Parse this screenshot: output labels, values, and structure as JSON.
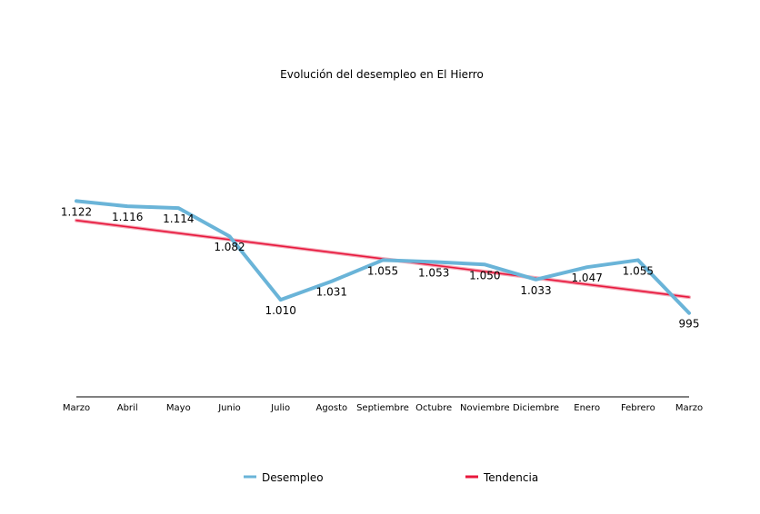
{
  "chart_data": {
    "type": "line",
    "title": "Evolución del desempleo en El Hierro",
    "categories": [
      "Marzo",
      "Abril",
      "Mayo",
      "Junio",
      "Julio",
      "Agosto",
      "Septiembre",
      "Octubre",
      "Noviembre",
      "Diciembre",
      "Enero",
      "Febrero",
      "Marzo"
    ],
    "series": [
      {
        "name": "Desempleo",
        "color": "#6ab4d8",
        "values": [
          1122,
          1116,
          1114,
          1082,
          1010,
          1031,
          1055,
          1053,
          1050,
          1033,
          1047,
          1055,
          995
        ],
        "labels": [
          "1.122",
          "1.116",
          "1.114",
          "1.082",
          "1.010",
          "1.031",
          "1.055",
          "1.053",
          "1.050",
          "1.033",
          "1.047",
          "1.055",
          "995"
        ]
      },
      {
        "name": "Tendencia",
        "color": "#e8173c",
        "type": "linear-trend",
        "start": 1100,
        "end": 1013
      }
    ],
    "ylim": [
      900,
      1180
    ],
    "xlabel": "",
    "ylabel": "",
    "legend": "bottom-center",
    "grid": false
  }
}
